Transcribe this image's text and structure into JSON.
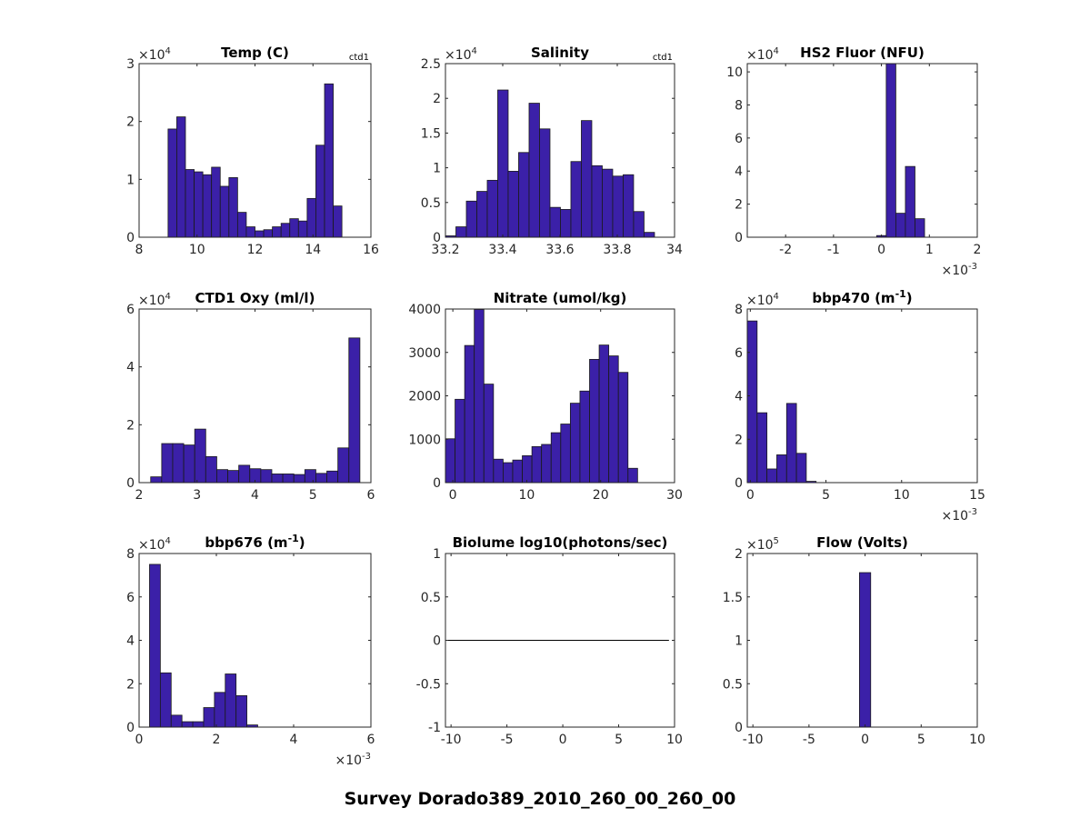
{
  "figure": {
    "suptitle": "Survey Dorado389_2010_260_00_260_00"
  },
  "colors": {
    "bar": "#3b20a8",
    "edge": "#1a1a1a",
    "axis": "#262626",
    "line": "#000000"
  },
  "chart_data": [
    {
      "type": "bar",
      "title": "Temp (C)",
      "corner_label": "ctd1",
      "exponent": "×10",
      "exp_power": "4",
      "exp_pos": "top",
      "xlim": [
        8,
        16
      ],
      "ylim": [
        0,
        3
      ],
      "xticks": [
        8,
        10,
        12,
        14,
        16
      ],
      "xtick_labels": [
        "8",
        "10",
        "12",
        "14",
        "16"
      ],
      "yticks": [
        0,
        1,
        2,
        3
      ],
      "ytick_labels": [
        "0",
        "1",
        "2",
        "3"
      ],
      "bin_start": 9.0,
      "bin_width": 0.3,
      "values": [
        1.87,
        2.08,
        1.17,
        1.13,
        1.08,
        1.21,
        0.88,
        1.03,
        0.43,
        0.18,
        0.11,
        0.13,
        0.18,
        0.24,
        0.32,
        0.28,
        0.67,
        1.59,
        2.65,
        0.54
      ]
    },
    {
      "type": "bar",
      "title": "Salinity",
      "corner_label": "ctd1",
      "exponent": "×10",
      "exp_power": "4",
      "exp_pos": "top",
      "xlim": [
        33.2,
        34
      ],
      "ylim": [
        0,
        2.5
      ],
      "xticks": [
        33.2,
        33.4,
        33.6,
        33.8,
        34
      ],
      "xtick_labels": [
        "33.2",
        "33.4",
        "33.6",
        "33.8",
        "34"
      ],
      "yticks": [
        0,
        0.5,
        1,
        1.5,
        2,
        2.5
      ],
      "ytick_labels": [
        "0",
        "0.5",
        "1",
        "1.5",
        "2",
        "2.5"
      ],
      "bin_start": 33.2,
      "bin_width": 0.0365,
      "values": [
        0.02,
        0.15,
        0.52,
        0.66,
        0.82,
        2.12,
        0.95,
        1.22,
        1.93,
        1.56,
        0.43,
        0.4,
        1.09,
        1.68,
        1.03,
        0.98,
        0.88,
        0.9,
        0.37,
        0.07
      ]
    },
    {
      "type": "bar",
      "title": "HS2 Fluor (NFU)",
      "corner_label": "",
      "exponent": "×10",
      "exp_power": "4",
      "exp_pos": "top",
      "x_exponent": "×10",
      "x_exp_power": "-3",
      "xlim": [
        -2.8,
        2
      ],
      "ylim": [
        0,
        10.5
      ],
      "xticks": [
        -2,
        -1,
        0,
        1,
        2
      ],
      "xtick_labels": [
        "-2",
        "-1",
        "0",
        "1",
        "2"
      ],
      "yticks": [
        0,
        2,
        4,
        6,
        8,
        10
      ],
      "ytick_labels": [
        "0",
        "2",
        "4",
        "6",
        "8",
        "10"
      ],
      "bin_start": -0.1,
      "bin_width": 0.2,
      "values": [
        0.1,
        10.8,
        1.45,
        4.28,
        1.12
      ]
    },
    {
      "type": "bar",
      "title": "CTD1 Oxy (ml/l)",
      "corner_label": "",
      "exponent": "×10",
      "exp_power": "4",
      "exp_pos": "top",
      "xlim": [
        2,
        6
      ],
      "ylim": [
        0,
        6
      ],
      "xticks": [
        2,
        3,
        4,
        5,
        6
      ],
      "xtick_labels": [
        "2",
        "3",
        "4",
        "5",
        "6"
      ],
      "yticks": [
        0,
        2,
        4,
        6
      ],
      "ytick_labels": [
        "0",
        "2",
        "4",
        "6"
      ],
      "bin_start": 2.2,
      "bin_width": 0.19,
      "values": [
        0.2,
        1.35,
        1.35,
        1.3,
        1.85,
        0.9,
        0.45,
        0.42,
        0.6,
        0.48,
        0.45,
        0.3,
        0.3,
        0.28,
        0.45,
        0.32,
        0.4,
        1.2,
        5.0
      ]
    },
    {
      "type": "bar",
      "title": "Nitrate (umol/kg)",
      "corner_label": "",
      "exponent": "",
      "exp_power": "",
      "exp_pos": "top",
      "xlim": [
        -1,
        30
      ],
      "ylim": [
        0,
        4000
      ],
      "xticks": [
        0,
        10,
        20,
        30
      ],
      "xtick_labels": [
        "0",
        "10",
        "20",
        "30"
      ],
      "yticks": [
        0,
        1000,
        2000,
        3000,
        4000
      ],
      "ytick_labels": [
        "0",
        "1000",
        "2000",
        "3000",
        "4000"
      ],
      "bin_start": -1,
      "bin_width": 1.3,
      "values": [
        1010,
        1920,
        3160,
        3990,
        2270,
        540,
        460,
        520,
        620,
        830,
        880,
        1150,
        1350,
        1830,
        2110,
        2840,
        3170,
        2920,
        2540,
        330
      ]
    },
    {
      "type": "bar",
      "title": "bbp470 (m",
      "title_sup": "-1",
      "title_tail": ")",
      "corner_label": "",
      "exponent": "×10",
      "exp_power": "4",
      "exp_pos": "top",
      "x_exponent": "×10",
      "x_exp_power": "-3",
      "xlim": [
        -0.2,
        15
      ],
      "ylim": [
        0,
        8
      ],
      "xticks": [
        0,
        5,
        10,
        15
      ],
      "xtick_labels": [
        "0",
        "5",
        "10",
        "15"
      ],
      "yticks": [
        0,
        2,
        4,
        6,
        8
      ],
      "ytick_labels": [
        "0",
        "2",
        "4",
        "6",
        "8"
      ],
      "bin_start": -0.2,
      "bin_width": 0.65,
      "values": [
        7.45,
        3.22,
        0.63,
        1.28,
        3.65,
        1.35,
        0.06
      ]
    },
    {
      "type": "bar",
      "title": "bbp676 (m",
      "title_sup": "-1",
      "title_tail": ")",
      "corner_label": "",
      "exponent": "×10",
      "exp_power": "4",
      "exp_pos": "top",
      "x_exponent": "×10",
      "x_exp_power": "-3",
      "xlim": [
        0,
        6
      ],
      "ylim": [
        0,
        8
      ],
      "xticks": [
        0,
        2,
        4,
        6
      ],
      "xtick_labels": [
        "0",
        "2",
        "4",
        "6"
      ],
      "yticks": [
        0,
        2,
        4,
        6,
        8
      ],
      "ytick_labels": [
        "0",
        "2",
        "4",
        "6",
        "8"
      ],
      "bin_start": 0.27,
      "bin_width": 0.28,
      "values": [
        7.5,
        2.5,
        0.55,
        0.25,
        0.25,
        0.9,
        1.6,
        2.45,
        1.45,
        0.1
      ]
    },
    {
      "type": "line",
      "title": "Biolume log10(photons/sec)",
      "corner_label": "",
      "exponent": "",
      "exp_power": "",
      "exp_pos": "top",
      "xlim": [
        -10.5,
        10
      ],
      "ylim": [
        -1,
        1
      ],
      "xticks": [
        -10,
        -5,
        0,
        5,
        10
      ],
      "xtick_labels": [
        "-10",
        "-5",
        "0",
        "5",
        "10"
      ],
      "yticks": [
        -1,
        -0.5,
        0,
        0.5,
        1
      ],
      "ytick_labels": [
        "-1",
        "-0.5",
        "0",
        "0.5",
        "1"
      ],
      "x": [
        -10.5,
        9.5
      ],
      "y": [
        0,
        0
      ]
    },
    {
      "type": "bar",
      "title": "Flow (Volts)",
      "corner_label": "",
      "exponent": "×10",
      "exp_power": "5",
      "exp_pos": "top",
      "xlim": [
        -10.5,
        10
      ],
      "ylim": [
        0,
        2
      ],
      "xticks": [
        -10,
        -5,
        0,
        5,
        10
      ],
      "xtick_labels": [
        "-10",
        "-5",
        "0",
        "5",
        "10"
      ],
      "yticks": [
        0,
        0.5,
        1,
        1.5,
        2
      ],
      "ytick_labels": [
        "0",
        "0.5",
        "1",
        "1.5",
        "2"
      ],
      "bin_start": -0.5,
      "bin_width": 1.0,
      "values": [
        1.78
      ]
    }
  ]
}
